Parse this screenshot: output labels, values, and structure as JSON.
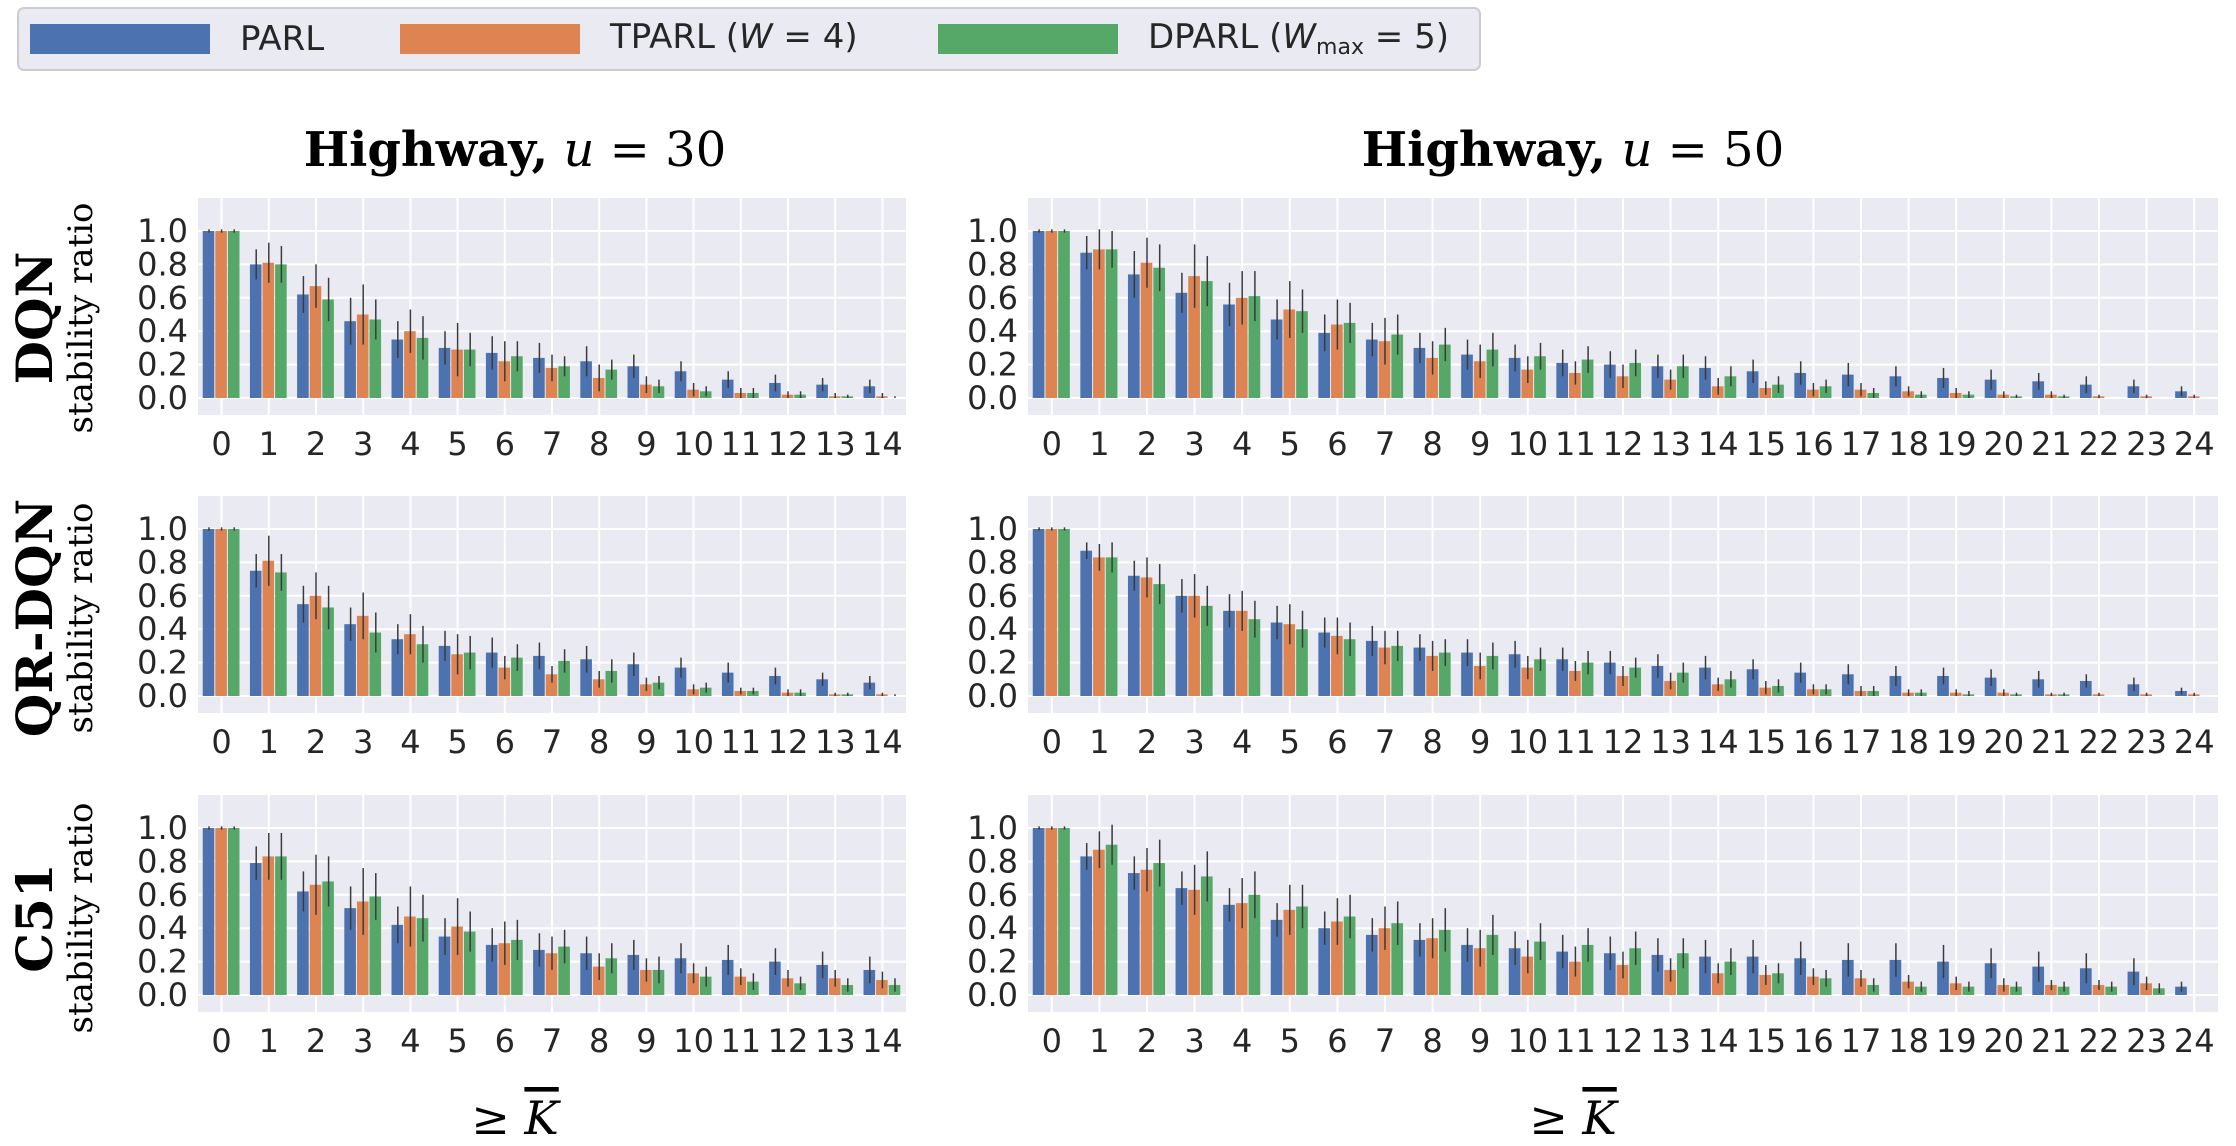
{
  "legend": {
    "items": [
      {
        "label": "PARL",
        "color": "#4C72B0"
      },
      {
        "label": "TPARL (W = 4)",
        "color": "#DD8452"
      },
      {
        "label": "DPARL (W_max = 5)",
        "color": "#55A868"
      }
    ]
  },
  "columns": [
    "Highway, u = 30",
    "Highway, u = 50"
  ],
  "rows": [
    "DQN",
    "QR-DQN",
    "C51"
  ],
  "ylabel": "stability ratio",
  "xlabel": "≥ K̄",
  "yticks": [
    "0.0",
    "0.2",
    "0.4",
    "0.6",
    "0.8",
    "1.0"
  ],
  "chart_data": [
    {
      "type": "bar",
      "row": "DQN",
      "column": "Highway, u = 30",
      "ylabel": "stability ratio",
      "xlabel": "≥ K̄",
      "ylim": [
        0,
        1.05
      ],
      "categories": [
        "0",
        "1",
        "2",
        "3",
        "4",
        "5",
        "6",
        "7",
        "8",
        "9",
        "10",
        "11",
        "12",
        "13",
        "14"
      ],
      "series": [
        {
          "name": "PARL",
          "values": [
            1.0,
            0.8,
            0.62,
            0.46,
            0.35,
            0.3,
            0.27,
            0.24,
            0.22,
            0.19,
            0.16,
            0.11,
            0.09,
            0.08,
            0.07
          ]
        },
        {
          "name": "TPARL (W = 4)",
          "values": [
            1.0,
            0.81,
            0.67,
            0.5,
            0.4,
            0.29,
            0.22,
            0.18,
            0.12,
            0.08,
            0.05,
            0.03,
            0.02,
            0.01,
            0.01
          ]
        },
        {
          "name": "DPARL (W_max = 5)",
          "values": [
            1.0,
            0.8,
            0.59,
            0.47,
            0.36,
            0.29,
            0.25,
            0.19,
            0.17,
            0.07,
            0.04,
            0.03,
            0.02,
            0.01,
            0.0
          ]
        }
      ],
      "errors": [
        [
          0.01,
          0.09,
          0.11,
          0.14,
          0.11,
          0.1,
          0.1,
          0.09,
          0.09,
          0.07,
          0.06,
          0.05,
          0.05,
          0.04,
          0.04
        ],
        [
          0.01,
          0.12,
          0.13,
          0.18,
          0.13,
          0.16,
          0.12,
          0.08,
          0.08,
          0.05,
          0.04,
          0.03,
          0.02,
          0.02,
          0.02
        ],
        [
          0.01,
          0.11,
          0.13,
          0.12,
          0.13,
          0.1,
          0.09,
          0.06,
          0.06,
          0.04,
          0.03,
          0.03,
          0.02,
          0.01,
          0.01
        ]
      ]
    },
    {
      "type": "bar",
      "row": "DQN",
      "column": "Highway, u = 50",
      "ylabel": "stability ratio",
      "xlabel": "≥ K̄",
      "ylim": [
        0,
        1.05
      ],
      "categories": [
        "0",
        "1",
        "2",
        "3",
        "4",
        "5",
        "6",
        "7",
        "8",
        "9",
        "10",
        "11",
        "12",
        "13",
        "14",
        "15",
        "16",
        "17",
        "18",
        "19",
        "20",
        "21",
        "22",
        "23",
        "24"
      ],
      "series": [
        {
          "name": "PARL",
          "values": [
            1.0,
            0.87,
            0.74,
            0.63,
            0.56,
            0.47,
            0.39,
            0.35,
            0.3,
            0.26,
            0.24,
            0.21,
            0.2,
            0.19,
            0.18,
            0.16,
            0.15,
            0.14,
            0.13,
            0.12,
            0.11,
            0.1,
            0.08,
            0.07,
            0.04
          ]
        },
        {
          "name": "TPARL (W = 4)",
          "values": [
            1.0,
            0.89,
            0.81,
            0.73,
            0.6,
            0.53,
            0.44,
            0.34,
            0.24,
            0.22,
            0.17,
            0.15,
            0.13,
            0.11,
            0.07,
            0.06,
            0.05,
            0.05,
            0.04,
            0.03,
            0.02,
            0.02,
            0.01,
            0.01,
            0.01
          ]
        },
        {
          "name": "DPARL (W_max = 5)",
          "values": [
            1.0,
            0.89,
            0.78,
            0.7,
            0.61,
            0.52,
            0.45,
            0.38,
            0.32,
            0.29,
            0.25,
            0.23,
            0.21,
            0.19,
            0.13,
            0.08,
            0.07,
            0.03,
            0.02,
            0.02,
            0.01,
            0.01,
            0.0,
            0.0,
            0.0
          ]
        }
      ],
      "errors": [
        [
          0.01,
          0.1,
          0.14,
          0.12,
          0.13,
          0.12,
          0.11,
          0.1,
          0.09,
          0.09,
          0.08,
          0.08,
          0.08,
          0.07,
          0.07,
          0.07,
          0.07,
          0.07,
          0.06,
          0.06,
          0.06,
          0.05,
          0.05,
          0.04,
          0.03
        ],
        [
          0.01,
          0.12,
          0.15,
          0.19,
          0.16,
          0.17,
          0.15,
          0.14,
          0.1,
          0.1,
          0.08,
          0.07,
          0.07,
          0.06,
          0.05,
          0.04,
          0.04,
          0.04,
          0.03,
          0.03,
          0.02,
          0.02,
          0.01,
          0.01,
          0.01
        ],
        [
          0.01,
          0.11,
          0.14,
          0.15,
          0.15,
          0.13,
          0.12,
          0.12,
          0.1,
          0.1,
          0.08,
          0.08,
          0.08,
          0.07,
          0.06,
          0.05,
          0.04,
          0.03,
          0.02,
          0.02,
          0.01,
          0.01,
          0.0,
          0.0,
          0.0
        ]
      ]
    },
    {
      "type": "bar",
      "row": "QR-DQN",
      "column": "Highway, u = 30",
      "ylabel": "stability ratio",
      "xlabel": "≥ K̄",
      "ylim": [
        0,
        1.05
      ],
      "categories": [
        "0",
        "1",
        "2",
        "3",
        "4",
        "5",
        "6",
        "7",
        "8",
        "9",
        "10",
        "11",
        "12",
        "13",
        "14"
      ],
      "series": [
        {
          "name": "PARL",
          "values": [
            1.0,
            0.75,
            0.55,
            0.43,
            0.34,
            0.3,
            0.26,
            0.24,
            0.22,
            0.19,
            0.17,
            0.14,
            0.12,
            0.1,
            0.08
          ]
        },
        {
          "name": "TPARL (W = 4)",
          "values": [
            1.0,
            0.81,
            0.6,
            0.48,
            0.37,
            0.25,
            0.17,
            0.13,
            0.1,
            0.07,
            0.04,
            0.03,
            0.02,
            0.01,
            0.01
          ]
        },
        {
          "name": "DPARL (W_max = 5)",
          "values": [
            1.0,
            0.74,
            0.53,
            0.38,
            0.31,
            0.26,
            0.23,
            0.21,
            0.15,
            0.08,
            0.05,
            0.03,
            0.02,
            0.01,
            0.0
          ]
        }
      ],
      "errors": [
        [
          0.01,
          0.1,
          0.11,
          0.1,
          0.09,
          0.09,
          0.09,
          0.08,
          0.08,
          0.07,
          0.06,
          0.06,
          0.05,
          0.04,
          0.04
        ],
        [
          0.01,
          0.15,
          0.14,
          0.14,
          0.12,
          0.12,
          0.07,
          0.05,
          0.05,
          0.04,
          0.03,
          0.02,
          0.02,
          0.01,
          0.01
        ],
        [
          0.01,
          0.11,
          0.13,
          0.12,
          0.11,
          0.1,
          0.08,
          0.07,
          0.07,
          0.04,
          0.03,
          0.02,
          0.02,
          0.01,
          0.01
        ]
      ]
    },
    {
      "type": "bar",
      "row": "QR-DQN",
      "column": "Highway, u = 50",
      "ylabel": "stability ratio",
      "xlabel": "≥ K̄",
      "ylim": [
        0,
        1.05
      ],
      "categories": [
        "0",
        "1",
        "2",
        "3",
        "4",
        "5",
        "6",
        "7",
        "8",
        "9",
        "10",
        "11",
        "12",
        "13",
        "14",
        "15",
        "16",
        "17",
        "18",
        "19",
        "20",
        "21",
        "22",
        "23",
        "24"
      ],
      "series": [
        {
          "name": "PARL",
          "values": [
            1.0,
            0.87,
            0.72,
            0.6,
            0.51,
            0.44,
            0.38,
            0.33,
            0.29,
            0.26,
            0.25,
            0.22,
            0.2,
            0.18,
            0.17,
            0.16,
            0.14,
            0.13,
            0.12,
            0.12,
            0.11,
            0.1,
            0.09,
            0.07,
            0.03
          ]
        },
        {
          "name": "TPARL (W = 4)",
          "values": [
            1.0,
            0.83,
            0.71,
            0.6,
            0.51,
            0.43,
            0.36,
            0.29,
            0.24,
            0.18,
            0.17,
            0.15,
            0.12,
            0.09,
            0.07,
            0.05,
            0.04,
            0.03,
            0.02,
            0.02,
            0.02,
            0.01,
            0.01,
            0.01,
            0.01
          ]
        },
        {
          "name": "DPARL (W_max = 5)",
          "values": [
            1.0,
            0.83,
            0.67,
            0.54,
            0.46,
            0.4,
            0.34,
            0.3,
            0.26,
            0.24,
            0.22,
            0.2,
            0.17,
            0.14,
            0.1,
            0.06,
            0.04,
            0.03,
            0.02,
            0.01,
            0.01,
            0.01,
            0.0,
            0.0,
            0.0
          ]
        }
      ],
      "errors": [
        [
          0.01,
          0.05,
          0.09,
          0.1,
          0.1,
          0.1,
          0.09,
          0.09,
          0.08,
          0.08,
          0.08,
          0.07,
          0.07,
          0.07,
          0.07,
          0.06,
          0.06,
          0.06,
          0.06,
          0.05,
          0.05,
          0.05,
          0.04,
          0.04,
          0.02
        ],
        [
          0.01,
          0.08,
          0.12,
          0.13,
          0.12,
          0.12,
          0.11,
          0.1,
          0.09,
          0.08,
          0.07,
          0.06,
          0.06,
          0.05,
          0.04,
          0.04,
          0.03,
          0.03,
          0.02,
          0.02,
          0.02,
          0.01,
          0.01,
          0.01,
          0.01
        ],
        [
          0.01,
          0.09,
          0.12,
          0.12,
          0.11,
          0.11,
          0.1,
          0.09,
          0.08,
          0.08,
          0.07,
          0.07,
          0.06,
          0.06,
          0.05,
          0.04,
          0.03,
          0.03,
          0.02,
          0.02,
          0.01,
          0.01,
          0.0,
          0.0,
          0.0
        ]
      ]
    },
    {
      "type": "bar",
      "row": "C51",
      "column": "Highway, u = 30",
      "ylabel": "stability ratio",
      "xlabel": "≥ K̄",
      "ylim": [
        0,
        1.05
      ],
      "categories": [
        "0",
        "1",
        "2",
        "3",
        "4",
        "5",
        "6",
        "7",
        "8",
        "9",
        "10",
        "11",
        "12",
        "13",
        "14"
      ],
      "series": [
        {
          "name": "PARL",
          "values": [
            1.0,
            0.79,
            0.62,
            0.52,
            0.42,
            0.35,
            0.3,
            0.27,
            0.25,
            0.24,
            0.22,
            0.21,
            0.2,
            0.18,
            0.15
          ]
        },
        {
          "name": "TPARL (W = 4)",
          "values": [
            1.0,
            0.83,
            0.66,
            0.56,
            0.47,
            0.41,
            0.31,
            0.25,
            0.17,
            0.15,
            0.13,
            0.11,
            0.1,
            0.1,
            0.09
          ]
        },
        {
          "name": "DPARL (W_max = 5)",
          "values": [
            1.0,
            0.83,
            0.68,
            0.59,
            0.46,
            0.38,
            0.33,
            0.29,
            0.22,
            0.15,
            0.11,
            0.08,
            0.07,
            0.06,
            0.06
          ]
        }
      ],
      "errors": [
        [
          0.01,
          0.1,
          0.12,
          0.13,
          0.11,
          0.11,
          0.1,
          0.1,
          0.1,
          0.09,
          0.09,
          0.09,
          0.08,
          0.08,
          0.08
        ],
        [
          0.01,
          0.14,
          0.18,
          0.2,
          0.18,
          0.17,
          0.13,
          0.1,
          0.08,
          0.07,
          0.06,
          0.05,
          0.05,
          0.05,
          0.05
        ],
        [
          0.01,
          0.14,
          0.15,
          0.14,
          0.14,
          0.12,
          0.12,
          0.1,
          0.09,
          0.08,
          0.06,
          0.05,
          0.04,
          0.04,
          0.04
        ]
      ]
    },
    {
      "type": "bar",
      "row": "C51",
      "column": "Highway, u = 50",
      "ylabel": "stability ratio",
      "xlabel": "≥ K̄",
      "ylim": [
        0,
        1.05
      ],
      "categories": [
        "0",
        "1",
        "2",
        "3",
        "4",
        "5",
        "6",
        "7",
        "8",
        "9",
        "10",
        "11",
        "12",
        "13",
        "14",
        "15",
        "16",
        "17",
        "18",
        "19",
        "20",
        "21",
        "22",
        "23",
        "24"
      ],
      "series": [
        {
          "name": "PARL",
          "values": [
            1.0,
            0.83,
            0.73,
            0.64,
            0.54,
            0.45,
            0.4,
            0.36,
            0.33,
            0.3,
            0.28,
            0.26,
            0.25,
            0.24,
            0.23,
            0.23,
            0.22,
            0.21,
            0.21,
            0.2,
            0.19,
            0.17,
            0.16,
            0.14,
            0.05
          ]
        },
        {
          "name": "TPARL (W = 4)",
          "values": [
            1.0,
            0.87,
            0.75,
            0.63,
            0.55,
            0.51,
            0.44,
            0.4,
            0.34,
            0.28,
            0.23,
            0.2,
            0.18,
            0.15,
            0.13,
            0.12,
            0.11,
            0.1,
            0.08,
            0.07,
            0.06,
            0.06,
            0.06,
            0.07,
            0.0
          ]
        },
        {
          "name": "DPARL (W_max = 5)",
          "values": [
            1.0,
            0.9,
            0.79,
            0.71,
            0.6,
            0.53,
            0.47,
            0.43,
            0.39,
            0.36,
            0.32,
            0.3,
            0.28,
            0.25,
            0.2,
            0.13,
            0.1,
            0.06,
            0.05,
            0.05,
            0.05,
            0.05,
            0.05,
            0.04,
            0.0
          ]
        }
      ],
      "errors": [
        [
          0.01,
          0.08,
          0.1,
          0.1,
          0.1,
          0.1,
          0.1,
          0.1,
          0.1,
          0.1,
          0.1,
          0.1,
          0.1,
          0.1,
          0.1,
          0.1,
          0.1,
          0.1,
          0.1,
          0.1,
          0.09,
          0.09,
          0.09,
          0.08,
          0.03
        ],
        [
          0.01,
          0.11,
          0.13,
          0.15,
          0.15,
          0.15,
          0.14,
          0.13,
          0.12,
          0.11,
          0.1,
          0.09,
          0.08,
          0.07,
          0.06,
          0.06,
          0.05,
          0.05,
          0.04,
          0.04,
          0.04,
          0.03,
          0.03,
          0.04,
          0.0
        ],
        [
          0.01,
          0.12,
          0.14,
          0.15,
          0.14,
          0.13,
          0.13,
          0.13,
          0.13,
          0.12,
          0.11,
          0.1,
          0.1,
          0.09,
          0.08,
          0.06,
          0.05,
          0.04,
          0.03,
          0.03,
          0.03,
          0.03,
          0.03,
          0.03,
          0.0
        ]
      ]
    }
  ]
}
